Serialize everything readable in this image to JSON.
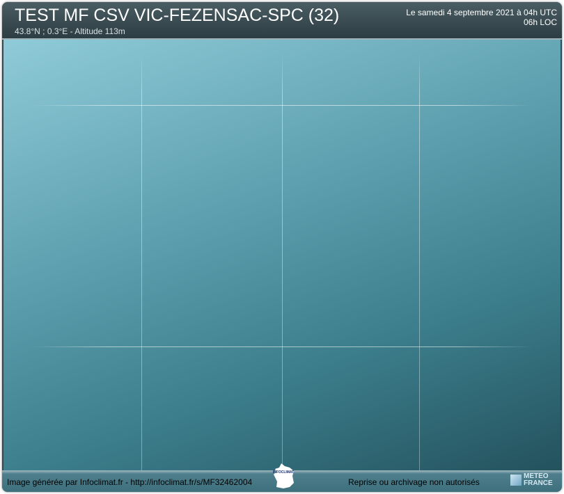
{
  "header": {
    "title": "TEST MF CSV VIC-FEZENSAC-SPC (32)",
    "coords": "43.8°N ; 0.3°E - Altitude 113m",
    "date_utc": "Le samedi 4 septembre 2021 à 04h UTC",
    "time_loc": "06h LOC"
  },
  "footer": {
    "credit": "Image générée par Infoclimat.fr - http://infoclimat.fr/s/MF32462004",
    "rights": "Reprise ou archivage non autorisés",
    "logo_infoclimat": "INFOCLIMAT",
    "logo_mf": "METEO FRANCE"
  }
}
